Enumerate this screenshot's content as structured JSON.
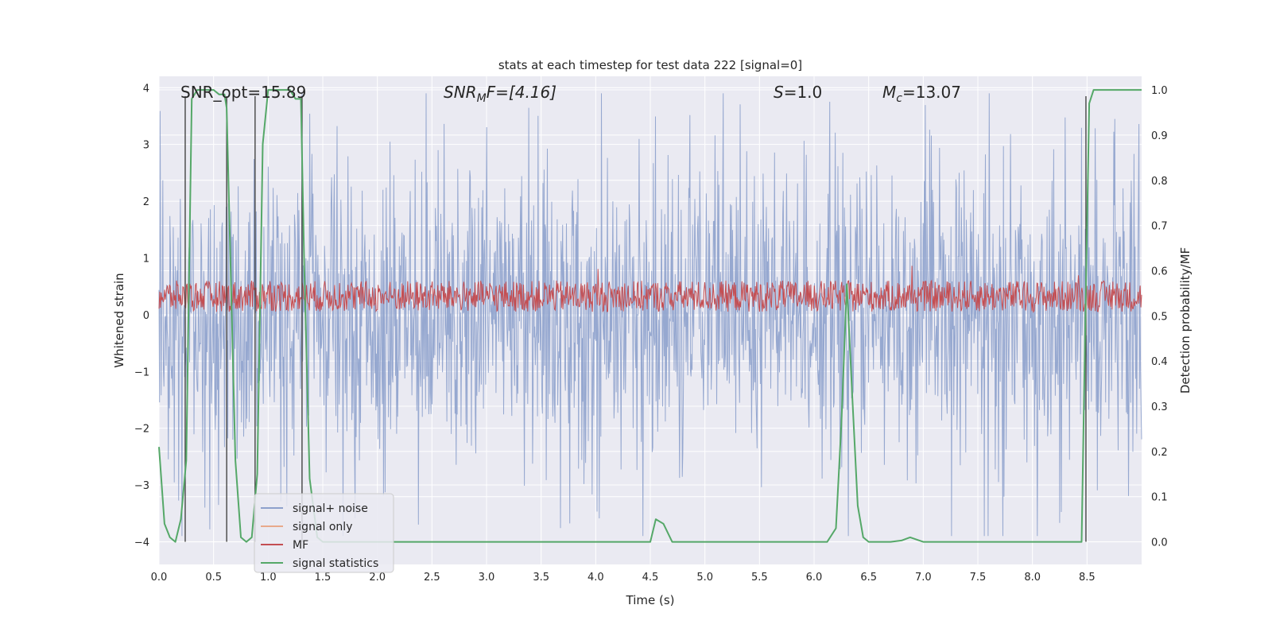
{
  "chart_data": {
    "type": "line",
    "title": "stats at each timestep for test data 222 [signal=0]",
    "xlabel": "Time (s)",
    "ylabel_left": "Whitened strain",
    "ylabel_right": "Detection probability/MF",
    "xlim": [
      0.0,
      9.0
    ],
    "ylim_left": [
      -4.4,
      4.2
    ],
    "ylim_right": [
      -0.05,
      1.03
    ],
    "x_ticks": [
      "0.0",
      "0.5",
      "1.0",
      "1.5",
      "2.0",
      "2.5",
      "3.0",
      "3.5",
      "4.0",
      "4.5",
      "5.0",
      "5.5",
      "6.0",
      "6.5",
      "7.0",
      "7.5",
      "8.0",
      "8.5"
    ],
    "y_ticks_left": [
      "−4",
      "−3",
      "−2",
      "−1",
      "0",
      "1",
      "2",
      "3",
      "4"
    ],
    "y_ticks_right": [
      "0.0",
      "0.1",
      "0.2",
      "0.3",
      "0.4",
      "0.5",
      "0.6",
      "0.7",
      "0.8",
      "0.9",
      "1.0"
    ],
    "grid": true,
    "annotations": {
      "snr_opt": "SNR_opt=15.89",
      "snr_mf_main": "SNR",
      "snr_mf_sub": "M",
      "snr_mf_rest": "F=[4.16]",
      "s_main": "S",
      "s_rest": "=1.0",
      "mc_main": "M",
      "mc_sub": "c",
      "mc_rest": "=13.07"
    },
    "legend": {
      "placement": "lower-left",
      "entries": [
        "signal+ noise",
        "signal only",
        "MF",
        "signal statistics"
      ]
    },
    "colors": {
      "signal_noise": "#8da1cc",
      "signal_only": "#e8a98b",
      "mf": "#c44e52",
      "signal_statistics": "#55a868",
      "background": "#eaeaf2",
      "markers": "#444444"
    },
    "series": [
      {
        "name": "signal+ noise",
        "axis": "left",
        "description_values": "Gaussian whitened noise, approx. band -1.7 to 1.7 with spikes up to ~3.8",
        "band": [
          -1.7,
          1.7
        ],
        "peak_range": [
          -3.9,
          3.9
        ]
      },
      {
        "name": "MF",
        "axis": "left",
        "band": [
          0.05,
          0.6
        ]
      },
      {
        "name": "signal statistics",
        "axis": "right",
        "x": [
          0.0,
          0.05,
          0.1,
          0.15,
          0.2,
          0.25,
          0.3,
          0.35,
          0.4,
          0.45,
          0.5,
          0.55,
          0.6,
          0.62,
          0.7,
          0.75,
          0.8,
          0.85,
          0.9,
          0.95,
          1.0,
          1.05,
          1.1,
          1.15,
          1.2,
          1.25,
          1.3,
          1.33,
          1.38,
          1.45,
          1.5,
          2.0,
          3.0,
          4.0,
          4.4,
          4.5,
          4.55,
          4.62,
          4.7,
          5.0,
          6.0,
          6.12,
          6.2,
          6.25,
          6.3,
          6.35,
          6.4,
          6.45,
          6.5,
          6.6,
          6.7,
          6.8,
          6.88,
          7.0,
          7.5,
          8.0,
          8.45,
          8.48,
          8.52,
          8.56,
          8.6,
          8.7,
          8.8,
          8.9,
          9.0
        ],
        "y": [
          0.21,
          0.04,
          0.01,
          0.0,
          0.05,
          0.18,
          0.98,
          1.0,
          1.0,
          1.0,
          1.0,
          0.99,
          0.99,
          0.96,
          0.18,
          0.01,
          0.0,
          0.01,
          0.15,
          0.88,
          1.0,
          1.0,
          1.0,
          1.0,
          1.0,
          0.98,
          0.98,
          0.61,
          0.14,
          0.01,
          0.0,
          0.0,
          0.0,
          0.0,
          0.0,
          0.0,
          0.05,
          0.04,
          0.0,
          0.0,
          0.0,
          0.0,
          0.03,
          0.26,
          0.57,
          0.32,
          0.08,
          0.01,
          0.0,
          0.0,
          0.0,
          0.003,
          0.01,
          0.0,
          0.0,
          0.0,
          0.0,
          0.43,
          0.97,
          1.0,
          1.0,
          1.0,
          1.0,
          1.0,
          1.0
        ]
      },
      {
        "name": "signal only",
        "axis": "left",
        "values": []
      }
    ],
    "vertical_markers_x": [
      0.24,
      0.62,
      0.88,
      1.31,
      8.49
    ]
  }
}
